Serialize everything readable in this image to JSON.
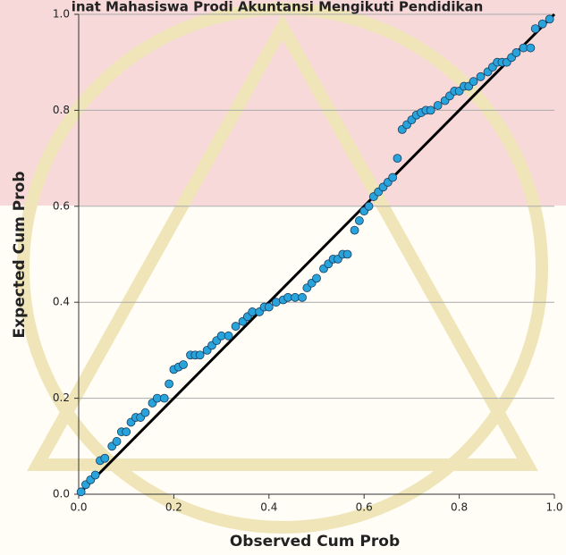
{
  "chart_data": {
    "type": "scatter",
    "title": "inat Mahasiswa Prodi Akuntansi Mengikuti Pendidikan",
    "x_label": "Observed Cum Prob",
    "y_label": "Expected Cum Prob",
    "color": "#29a3dc",
    "line_color": "#000000",
    "grid": true,
    "xlim": [
      0,
      1
    ],
    "ylim": [
      0,
      1
    ],
    "xticks": [
      {
        "value": 0,
        "label": "0.0"
      },
      {
        "value": 0.2,
        "label": "0.2"
      },
      {
        "value": 0.4,
        "label": "0.4"
      },
      {
        "value": 0.6,
        "label": "0.6"
      },
      {
        "value": 0.8,
        "label": "0.8"
      },
      {
        "value": 1,
        "label": "1.0"
      }
    ],
    "yticks": [
      {
        "value": 0,
        "label": "0.0"
      },
      {
        "value": 0.2,
        "label": "0.2"
      },
      {
        "value": 0.4,
        "label": "0.4"
      },
      {
        "value": 0.6,
        "label": "0.6"
      },
      {
        "value": 0.8,
        "label": "0.8"
      },
      {
        "value": 1,
        "label": "1.0"
      }
    ],
    "x": [
      0.005,
      0.015,
      0.025,
      0.035,
      0.045,
      0.055,
      0.07,
      0.08,
      0.09,
      0.1,
      0.11,
      0.12,
      0.13,
      0.14,
      0.155,
      0.165,
      0.18,
      0.19,
      0.2,
      0.21,
      0.22,
      0.235,
      0.245,
      0.255,
      0.27,
      0.28,
      0.29,
      0.3,
      0.315,
      0.33,
      0.345,
      0.355,
      0.365,
      0.38,
      0.39,
      0.4,
      0.415,
      0.43,
      0.44,
      0.455,
      0.47,
      0.48,
      0.49,
      0.5,
      0.515,
      0.525,
      0.535,
      0.545,
      0.555,
      0.565,
      0.58,
      0.59,
      0.6,
      0.61,
      0.62,
      0.63,
      0.64,
      0.65,
      0.66,
      0.67,
      0.68,
      0.69,
      0.7,
      0.71,
      0.72,
      0.73,
      0.74,
      0.755,
      0.77,
      0.78,
      0.79,
      0.8,
      0.81,
      0.82,
      0.83,
      0.845,
      0.86,
      0.87,
      0.88,
      0.89,
      0.9,
      0.91,
      0.92,
      0.935,
      0.95,
      0.96,
      0.975,
      0.99
    ],
    "y": [
      0.005,
      0.02,
      0.03,
      0.04,
      0.07,
      0.075,
      0.1,
      0.11,
      0.13,
      0.13,
      0.15,
      0.16,
      0.16,
      0.17,
      0.19,
      0.2,
      0.2,
      0.23,
      0.26,
      0.265,
      0.27,
      0.29,
      0.29,
      0.29,
      0.3,
      0.31,
      0.32,
      0.33,
      0.33,
      0.35,
      0.36,
      0.37,
      0.38,
      0.38,
      0.39,
      0.39,
      0.4,
      0.405,
      0.41,
      0.41,
      0.41,
      0.43,
      0.44,
      0.45,
      0.47,
      0.48,
      0.49,
      0.49,
      0.5,
      0.5,
      0.55,
      0.57,
      0.59,
      0.6,
      0.62,
      0.63,
      0.64,
      0.65,
      0.66,
      0.7,
      0.76,
      0.77,
      0.78,
      0.79,
      0.795,
      0.8,
      0.8,
      0.81,
      0.82,
      0.83,
      0.84,
      0.84,
      0.85,
      0.85,
      0.86,
      0.87,
      0.88,
      0.89,
      0.9,
      0.9,
      0.9,
      0.91,
      0.92,
      0.93,
      0.93,
      0.97,
      0.98,
      0.99
    ]
  }
}
